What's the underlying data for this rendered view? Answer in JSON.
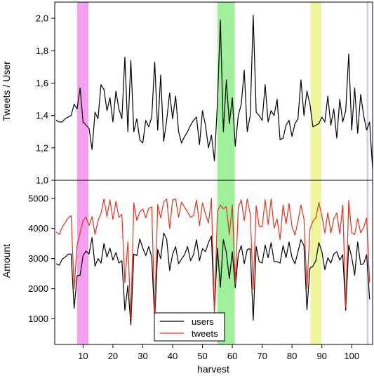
{
  "chart_data": [
    {
      "type": "line",
      "panel": "top",
      "ylabel": "Tweets / User",
      "xlabel": "",
      "xlim": [
        0.5,
        107
      ],
      "ylim": [
        1.0,
        2.1
      ],
      "yticks": [
        "1,0",
        "1,2",
        "1,4",
        "1,6",
        "1,8",
        "2,0"
      ],
      "ytick_values": [
        1.0,
        1.2,
        1.4,
        1.6,
        1.8,
        2.0
      ],
      "grid": false,
      "series": [
        {
          "color": "#000000",
          "values": [
            1.37,
            1.36,
            1.36,
            1.38,
            1.39,
            1.4,
            1.47,
            1.44,
            1.57,
            1.36,
            1.34,
            1.32,
            1.19,
            1.42,
            1.38,
            1.59,
            1.56,
            1.43,
            1.51,
            1.36,
            1.55,
            1.44,
            1.38,
            1.76,
            1.3,
            1.74,
            1.3,
            1.38,
            1.25,
            1.23,
            1.37,
            1.33,
            1.39,
            1.73,
            1.31,
            1.65,
            1.24,
            1.37,
            1.54,
            1.38,
            1.52,
            1.3,
            1.23,
            1.27,
            1.3,
            1.34,
            1.37,
            1.39,
            1.22,
            1.43,
            1.34,
            1.2,
            1.28,
            1.12,
            1.47,
            1.99,
            1.3,
            1.62,
            1.35,
            1.51,
            1.21,
            1.4,
            1.47,
            1.68,
            1.3,
            1.4,
            2.02,
            1.42,
            1.4,
            1.37,
            1.59,
            1.36,
            1.43,
            1.4,
            1.5,
            1.25,
            1.26,
            1.34,
            1.37,
            1.27,
            1.35,
            1.38,
            1.62,
            1.4,
            1.55,
            1.47,
            1.33,
            1.34,
            1.35,
            1.39,
            1.36,
            1.52,
            1.34,
            1.44,
            1.26,
            1.5,
            1.36,
            1.43,
            1.78,
            1.31,
            1.57,
            1.29,
            1.53,
            1.4,
            1.31,
            1.36,
            1.07
          ]
        }
      ],
      "highlights": [
        {
          "from": 8.0,
          "to": 11.8,
          "color": "#f59ff0"
        },
        {
          "from": 55.0,
          "to": 60.8,
          "color": "#9ef09a"
        },
        {
          "from": 86.2,
          "to": 89.8,
          "color": "#eef59a"
        },
        {
          "from": 105.0,
          "to": 105.6,
          "color": "#c6cdf2"
        }
      ]
    },
    {
      "type": "line",
      "panel": "bottom",
      "ylabel": "Amount",
      "xlabel": "harvest",
      "xlim": [
        0.5,
        107
      ],
      "ylim": [
        150,
        5600
      ],
      "xticks": [
        10,
        20,
        30,
        40,
        50,
        60,
        70,
        80,
        90,
        100
      ],
      "yticks": [
        "1000",
        "2000",
        "3000",
        "4000",
        "5000"
      ],
      "ytick_values": [
        1000,
        2000,
        3000,
        4000,
        5000
      ],
      "grid": false,
      "legend": {
        "position": "bottom-center"
      },
      "series": [
        {
          "name": "users",
          "color": "#000000",
          "values": [
            2830,
            2780,
            2980,
            3050,
            3150,
            3150,
            1350,
            2430,
            2450,
            3100,
            3250,
            3150,
            3700,
            2750,
            3000,
            2850,
            3500,
            3050,
            3350,
            2950,
            3200,
            2850,
            2930,
            1280,
            2100,
            800,
            3150,
            3100,
            3650,
            3350,
            3100,
            3400,
            3050,
            950,
            3300,
            3000,
            3850,
            3650,
            2600,
            3150,
            3400,
            2830,
            2990,
            3130,
            3400,
            2930,
            3130,
            3630,
            2930,
            3330,
            3230,
            3530,
            3750,
            1230,
            3350,
            2050,
            3630,
            3200,
            2330,
            3230,
            2030,
            3130,
            3430,
            2830,
            3300,
            3330,
            950,
            3400,
            2900,
            2850,
            3450,
            3030,
            3530,
            2900,
            2900,
            2850,
            3430,
            3030,
            3550,
            3030,
            2830,
            3230,
            3630,
            3430,
            1300,
            2680,
            2750,
            2930,
            3530,
            3230,
            2630,
            3030,
            2850,
            3150,
            3230,
            2950,
            3130,
            1280,
            3450,
            3050,
            2450,
            3550,
            2800,
            2830,
            3130,
            1650
          ]
        },
        {
          "name": "tweets",
          "color": "#e8321e",
          "values": [
            3880,
            3800,
            4040,
            4200,
            4350,
            4420,
            2000,
            3450,
            3850,
            4270,
            4380,
            4100,
            4400,
            3800,
            4260,
            4500,
            4980,
            4400,
            4950,
            4300,
            4900,
            4370,
            4470,
            2200,
            3550,
            1000,
            4850,
            4270,
            4550,
            4650,
            4350,
            4670,
            4720,
            1100,
            4800,
            4350,
            4880,
            4980,
            4000,
            4950,
            4980,
            4370,
            4880,
            4700,
            4550,
            4370,
            4430,
            4950,
            4100,
            4850,
            4480,
            4180,
            5000,
            1200,
            4560,
            4780,
            4650,
            4730,
            3800,
            4780,
            2150,
            4700,
            4950,
            4260,
            4980,
            4480,
            1980,
            4760,
            4080,
            4050,
            4960,
            4130,
            4980,
            4010,
            4320,
            3630,
            4780,
            4150,
            4830,
            4060,
            3780,
            4250,
            4780,
            4320,
            2000,
            3980,
            4240,
            4370,
            4860,
            4420,
            3850,
            4530,
            3850,
            4320,
            4520,
            3820,
            4780,
            1380,
            4930,
            3860,
            3800,
            4330,
            3850,
            4030,
            4350,
            2200
          ]
        }
      ],
      "highlights": [
        {
          "from": 8.0,
          "to": 11.8,
          "color": "#f59ff0"
        },
        {
          "from": 55.0,
          "to": 60.8,
          "color": "#9ef09a"
        },
        {
          "from": 86.2,
          "to": 89.8,
          "color": "#eef59a"
        },
        {
          "from": 105.0,
          "to": 105.6,
          "color": "#c6cdf2"
        }
      ]
    }
  ]
}
